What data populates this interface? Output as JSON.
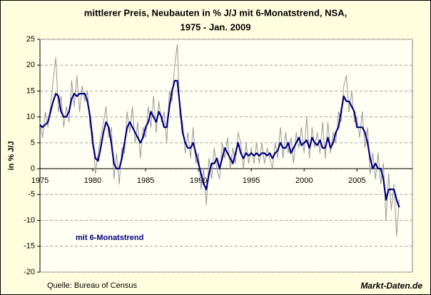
{
  "chart_data": {
    "type": "line",
    "title": "mittlerer Preis, Neubauten in % J/J mit 6-Monatstrend, NSA,",
    "subtitle": "1975 - Jan. 2009",
    "y_label": "in % J/J",
    "source": "Quelle: Bureau of Census",
    "brand": "Markt-Daten.de",
    "x": [
      1975,
      1975.25,
      1975.5,
      1975.75,
      1976,
      1976.25,
      1976.5,
      1976.75,
      1977,
      1977.25,
      1977.5,
      1977.75,
      1978,
      1978.25,
      1978.5,
      1978.75,
      1979,
      1979.25,
      1979.5,
      1979.75,
      1980,
      1980.25,
      1980.5,
      1980.75,
      1981,
      1981.25,
      1981.5,
      1981.75,
      1982,
      1982.25,
      1982.5,
      1982.75,
      1983,
      1983.25,
      1983.5,
      1983.75,
      1984,
      1984.25,
      1984.5,
      1984.75,
      1985,
      1985.25,
      1985.5,
      1985.75,
      1986,
      1986.25,
      1986.5,
      1986.75,
      1987,
      1987.25,
      1987.5,
      1987.75,
      1988,
      1988.25,
      1988.5,
      1988.75,
      1989,
      1989.25,
      1989.5,
      1989.75,
      1990,
      1990.25,
      1990.5,
      1990.75,
      1991,
      1991.25,
      1991.5,
      1991.75,
      1992,
      1992.25,
      1992.5,
      1992.75,
      1993,
      1993.25,
      1993.5,
      1993.75,
      1994,
      1994.25,
      1994.5,
      1994.75,
      1995,
      1995.25,
      1995.5,
      1995.75,
      1996,
      1996.25,
      1996.5,
      1996.75,
      1997,
      1997.25,
      1997.5,
      1997.75,
      1998,
      1998.25,
      1998.5,
      1998.75,
      1999,
      1999.25,
      1999.5,
      1999.75,
      2000,
      2000.25,
      2000.5,
      2000.75,
      2001,
      2001.25,
      2001.5,
      2001.75,
      2002,
      2002.25,
      2002.5,
      2002.75,
      2003,
      2003.25,
      2003.5,
      2003.75,
      2004,
      2004.25,
      2004.5,
      2004.75,
      2005,
      2005.25,
      2005.5,
      2005.75,
      2006,
      2006.25,
      2006.5,
      2006.75,
      2007,
      2007.25,
      2007.5,
      2007.75,
      2008,
      2008.25,
      2008.5,
      2008.75,
      2009
    ],
    "series": [
      {
        "color": "#999999",
        "values": [
          9,
          6,
          11,
          8,
          12,
          17,
          21.5,
          11,
          14,
          8,
          12,
          9,
          17,
          12,
          18,
          11,
          16,
          13,
          15,
          8,
          7,
          -1,
          3,
          6,
          9,
          12,
          6,
          8,
          -2,
          3,
          -3,
          4,
          3,
          11,
          7,
          12,
          5,
          9,
          2,
          8,
          6,
          12,
          8,
          14,
          7,
          13,
          9,
          11,
          5,
          15,
          13,
          20,
          24,
          10,
          9,
          3,
          7,
          2,
          8,
          1,
          3,
          -4,
          0,
          -7,
          2,
          -2,
          4,
          0,
          -2,
          5,
          2,
          6,
          0,
          4,
          1,
          7,
          5,
          0,
          5,
          1,
          4,
          1,
          5,
          1,
          5,
          1,
          4,
          2,
          0,
          5,
          2,
          8,
          2,
          7,
          3,
          6,
          1,
          7,
          4,
          8,
          3,
          10,
          2,
          8,
          4,
          7,
          3,
          9,
          2,
          9,
          3,
          7,
          5,
          11,
          9,
          16,
          18,
          11,
          15,
          9,
          10,
          6,
          11,
          4,
          8,
          -1,
          3,
          -2,
          3,
          -3,
          1,
          -10,
          -1,
          -8,
          -3,
          -13,
          -6
        ]
      },
      {
        "name": "mit 6-Monatstrend",
        "color": "#000080",
        "values": [
          8.5,
          8,
          8.5,
          9,
          11,
          13,
          14.5,
          14,
          11,
          10,
          10,
          11,
          13.5,
          14.5,
          14,
          14.5,
          14.5,
          14.5,
          13,
          10,
          5,
          2,
          1.5,
          4,
          7,
          9,
          8,
          5,
          1,
          0,
          0,
          2,
          5,
          8,
          9,
          8,
          7,
          6,
          5,
          6,
          8,
          9,
          11,
          10,
          9,
          11,
          10,
          8,
          8,
          12,
          15,
          17,
          17,
          12,
          7,
          5,
          4,
          4,
          5,
          3,
          1,
          -1,
          -3,
          -4,
          -1,
          1,
          1,
          2,
          0,
          2,
          4,
          3,
          2,
          1,
          3,
          5,
          3,
          2,
          3,
          2.5,
          3,
          2.5,
          3,
          2.5,
          3,
          3,
          2.5,
          3,
          2,
          3,
          3.5,
          5,
          4,
          4,
          5,
          3,
          4,
          5,
          6,
          4.5,
          5,
          5.5,
          4,
          6,
          5,
          4.5,
          5.5,
          4,
          4,
          6,
          4,
          5,
          7,
          8,
          11,
          14,
          13,
          13,
          12,
          11,
          8,
          8,
          8,
          7,
          5,
          2,
          0,
          1,
          0,
          0,
          -2,
          -6,
          -4,
          -4,
          -4,
          -6,
          -7.5
        ]
      }
    ],
    "xlim": [
      1975,
      2010.25
    ],
    "xticks": [
      1975,
      1980,
      1985,
      1990,
      1995,
      2000,
      2005
    ],
    "ylim": [
      -20,
      25
    ],
    "yticks": [
      -20,
      -15,
      -10,
      -5,
      0,
      5,
      10,
      15,
      20,
      25
    ],
    "grid": true
  }
}
